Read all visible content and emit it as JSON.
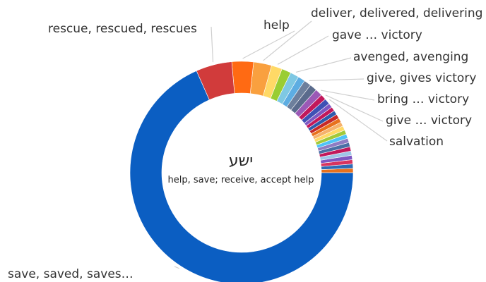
{
  "chart_data": {
    "type": "pie",
    "center_title": "ישע",
    "center_subtitle": "help, save; receive, accept help",
    "slices": [
      {
        "label": "",
        "value": 0.6,
        "color": "#e8711c"
      },
      {
        "label": "",
        "value": 0.6,
        "color": "#2d6bb5"
      },
      {
        "label": "",
        "value": 0.6,
        "color": "#d8345f"
      },
      {
        "label": "",
        "value": 0.6,
        "color": "#7e57c2"
      },
      {
        "label": "",
        "value": 0.6,
        "color": "#9fc5e8"
      },
      {
        "label": "",
        "value": 0.6,
        "color": "#c2185b"
      },
      {
        "label": "",
        "value": 0.6,
        "color": "#4a6fa5"
      },
      {
        "label": "",
        "value": 0.6,
        "color": "#8e7cc3"
      },
      {
        "label": "",
        "value": 0.6,
        "color": "#4fc3f7"
      },
      {
        "label": "",
        "value": 0.6,
        "color": "#a2c93a"
      },
      {
        "label": "",
        "value": 0.6,
        "color": "#ffd966"
      },
      {
        "label": "",
        "value": 0.6,
        "color": "#f6b26b"
      },
      {
        "label": "",
        "value": 0.6,
        "color": "#e8711c"
      },
      {
        "label": "",
        "value": 0.6,
        "color": "#c62828"
      },
      {
        "label": "",
        "value": 0.6,
        "color": "#2e5aac"
      },
      {
        "label": "",
        "value": 0.6,
        "color": "#c2185b"
      },
      {
        "label": "",
        "value": 0.6,
        "color": "#7e57c2"
      },
      {
        "label": "salvation",
        "value": 0.8,
        "color": "#3f51b5"
      },
      {
        "label": "give … victory",
        "value": 0.8,
        "color": "#c2185b"
      },
      {
        "label": "bring … victory",
        "value": 1.0,
        "color": "#9b59b6"
      },
      {
        "label": "",
        "value": 1.0,
        "color": "#5a6b8c"
      },
      {
        "label": "give, gives victory",
        "value": 1.0,
        "color": "#6d7f9c"
      },
      {
        "label": "",
        "value": 1.0,
        "color": "#5dade2"
      },
      {
        "label": "avenged, avenging",
        "value": 1.2,
        "color": "#7ec8e3"
      },
      {
        "label": "",
        "value": 1.3,
        "color": "#9acd32"
      },
      {
        "label": "gave … victory",
        "value": 1.5,
        "color": "#ffd966"
      },
      {
        "label": "deliver, delivered, delivering",
        "value": 2.5,
        "color": "#f9a03f"
      },
      {
        "label": "help",
        "value": 3.0,
        "color": "#ff6a13"
      },
      {
        "label": "rescue, rescued, rescues",
        "value": 5.0,
        "color": "#d13b3b"
      },
      {
        "label": "save, saved, saves…",
        "value": 65.5,
        "color": "#0b5ec2"
      }
    ]
  }
}
